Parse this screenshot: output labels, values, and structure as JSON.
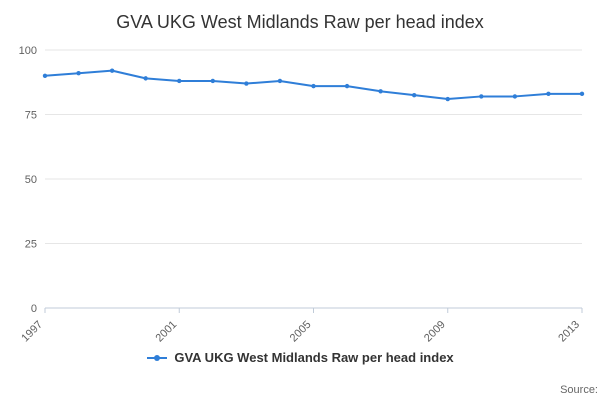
{
  "title": "GVA UKG West Midlands Raw per head index",
  "legend": {
    "label": "GVA UKG West Midlands Raw per head index"
  },
  "source": "Source:",
  "colors": {
    "line": "#2f7ed8",
    "grid": "#e6e6e6",
    "axis_line": "#c0cbd8",
    "axis_text": "#606060",
    "title": "#333333"
  },
  "chart_data": {
    "type": "line",
    "title": "GVA UKG West Midlands Raw per head index",
    "x": [
      1997,
      1998,
      1999,
      2000,
      2001,
      2002,
      2003,
      2004,
      2005,
      2006,
      2007,
      2008,
      2009,
      2010,
      2011,
      2012,
      2013
    ],
    "series": [
      {
        "name": "GVA UKG West Midlands Raw per head index",
        "values": [
          90,
          91,
          92,
          89,
          88,
          88,
          87,
          88,
          86,
          86,
          84,
          82.5,
          81,
          82,
          82,
          83,
          83
        ]
      }
    ],
    "xlabel": "",
    "ylabel": "",
    "ylim": [
      0,
      100
    ],
    "yticks": [
      0,
      25,
      50,
      75,
      100
    ],
    "xtick_labels": [
      "1997",
      "2001",
      "2005",
      "2009",
      "2013"
    ],
    "grid": "horizontal",
    "legend_position": "bottom"
  }
}
